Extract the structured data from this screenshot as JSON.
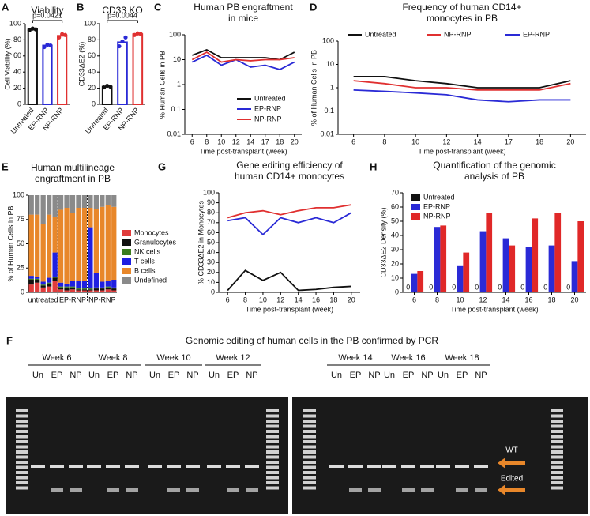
{
  "chart_data": [
    {
      "type": "bar",
      "label": "A",
      "title": [
        "Viability"
      ],
      "ylabel": "Cell Viability (%)",
      "annotation": "p=0.0421",
      "categories": [
        "Untreated",
        "EP-RNP",
        "NP-RNP"
      ],
      "values": [
        93,
        73,
        85
      ],
      "points": [
        [
          92,
          94,
          93
        ],
        [
          71,
          74,
          73
        ],
        [
          83,
          87,
          86
        ]
      ],
      "colors": [
        "#111111",
        "#2a2ad6",
        "#e03030"
      ],
      "ylim": [
        0,
        100
      ],
      "yticks": [
        0,
        20,
        40,
        60,
        80,
        100
      ]
    },
    {
      "type": "bar",
      "label": "B",
      "title": [
        "CD33 KO"
      ],
      "ylabel": "CD33ΔE2 (%)",
      "annotation": "p=0.0044",
      "categories": [
        "Untreated",
        "EP-RNP",
        "NP-RNP"
      ],
      "values": [
        22,
        77,
        87
      ],
      "points": [
        [
          21,
          23,
          22
        ],
        [
          72,
          78,
          83
        ],
        [
          86,
          88,
          87
        ]
      ],
      "colors": [
        "#111111",
        "#2a2ad6",
        "#e03030"
      ],
      "ylim": [
        0,
        100
      ],
      "yticks": [
        0,
        20,
        40,
        60,
        80,
        100
      ]
    },
    {
      "type": "line",
      "label": "C",
      "title": [
        "Human PB engraftment",
        "in mice"
      ],
      "ylabel": "% Human Cells in PB",
      "xlabel": "Time post-transplant (week)",
      "log": true,
      "legend": "lower right",
      "categories": [
        "6",
        "8",
        "10",
        "12",
        "14",
        "17",
        "18",
        "20"
      ],
      "series": [
        {
          "name": "Untreated",
          "color": "#111111",
          "values": [
            15,
            25,
            12,
            12,
            12,
            12,
            10,
            20
          ]
        },
        {
          "name": "EP-RNP",
          "color": "#2a2ad6",
          "values": [
            8,
            15,
            6,
            10,
            5,
            6,
            4,
            8
          ]
        },
        {
          "name": "NP-RNP",
          "color": "#e03030",
          "values": [
            10,
            20,
            8,
            10,
            9,
            10,
            10,
            12
          ]
        }
      ],
      "ylim": [
        0.01,
        100
      ],
      "yticks": [
        0.01,
        0.1,
        1,
        10,
        100
      ]
    },
    {
      "type": "line",
      "label": "D",
      "title": [
        "Frequency of human CD14+",
        "monocytes in PB"
      ],
      "ylabel": "% of Human Cells in PB",
      "xlabel": "Time post-transplant (week)",
      "log": true,
      "legend": "top",
      "categories": [
        "6",
        "8",
        "10",
        "12",
        "14",
        "17",
        "18",
        "20"
      ],
      "series": [
        {
          "name": "Untreated",
          "color": "#111111",
          "values": [
            3,
            3,
            2,
            1.5,
            1,
            1,
            1,
            2
          ]
        },
        {
          "name": "NP-RNP",
          "color": "#e03030",
          "values": [
            2,
            1.5,
            1,
            1,
            0.8,
            0.8,
            0.8,
            1.5
          ]
        },
        {
          "name": "EP-RNP",
          "color": "#2a2ad6",
          "values": [
            0.8,
            0.7,
            0.6,
            0.5,
            0.3,
            0.25,
            0.3,
            0.3
          ]
        }
      ],
      "ylim": [
        0.01,
        100
      ],
      "yticks": [
        0.01,
        0.1,
        1,
        10,
        100
      ]
    },
    {
      "type": "stacked_bar",
      "label": "E",
      "title": [
        "Human multilineage",
        "engraftment in PB"
      ],
      "ylabel": "% of Human Cells in PB",
      "legend": "right",
      "group_labels": [
        "untreated",
        "EP-RNP",
        "NP-RNP"
      ],
      "categories": [
        null,
        null,
        null,
        null,
        null,
        null,
        null,
        null,
        null,
        null,
        null,
        null,
        null,
        null,
        null
      ],
      "series": [
        {
          "name": "Monocytes",
          "color": "#e03c3c",
          "values": [
            8,
            10,
            5,
            6,
            12,
            3,
            2,
            3,
            2,
            2,
            2,
            2,
            2,
            3,
            2
          ]
        },
        {
          "name": "Granulocytes",
          "color": "#111111",
          "values": [
            5,
            3,
            2,
            3,
            3,
            2,
            3,
            2,
            1,
            1,
            1,
            2,
            2,
            2,
            2
          ]
        },
        {
          "name": "NK cells",
          "color": "#3a7d1e",
          "values": [
            1,
            1,
            1,
            1,
            1,
            1,
            1,
            1,
            1,
            1,
            1,
            1,
            1,
            1,
            1
          ]
        },
        {
          "name": "T cells",
          "color": "#1f1fe0",
          "values": [
            3,
            2,
            3,
            5,
            25,
            4,
            3,
            6,
            8,
            8,
            63,
            15,
            6,
            6,
            8
          ]
        },
        {
          "name": "B cells",
          "color": "#e8872a",
          "values": [
            63,
            64,
            59,
            65,
            37,
            75,
            78,
            70,
            75,
            75,
            20,
            66,
            77,
            78,
            75
          ]
        },
        {
          "name": "Undefined",
          "color": "#8a8a8a",
          "values": [
            20,
            20,
            30,
            20,
            22,
            15,
            13,
            18,
            13,
            13,
            13,
            14,
            12,
            10,
            12
          ]
        }
      ],
      "ylim": [
        0,
        100
      ],
      "yticks": [
        0,
        25,
        50,
        75,
        100
      ]
    },
    {
      "type": "line",
      "label": "G",
      "title": [
        "Gene editing efficiency of",
        "human CD14+ monocytes"
      ],
      "ylabel": "% CD33ΔE2 in Monocytes",
      "xlabel": "Time post-transplant (week)",
      "categories": [
        "6",
        "8",
        "10",
        "12",
        "14",
        "16",
        "18",
        "20"
      ],
      "series": [
        {
          "name": "NP-RNP",
          "color": "#e03030",
          "values": [
            75,
            80,
            82,
            78,
            82,
            85,
            85,
            88
          ]
        },
        {
          "name": "EP-RNP",
          "color": "#2a2ad6",
          "values": [
            72,
            75,
            58,
            75,
            70,
            75,
            70,
            80
          ]
        },
        {
          "name": "Untreated",
          "color": "#111111",
          "values": [
            2,
            22,
            12,
            20,
            2,
            3,
            5,
            6
          ]
        }
      ],
      "ylim": [
        0,
        100
      ],
      "yticks": [
        0,
        10,
        20,
        30,
        40,
        50,
        60,
        70,
        80,
        90,
        100
      ]
    },
    {
      "type": "grouped_bar",
      "label": "H",
      "title": [
        "Quantification of the genomic",
        "analysis of PB"
      ],
      "ylabel": "CD33ΔE2 Density (%)",
      "xlabel": "Time post-transplant (week)",
      "legend": "upper left",
      "categories": [
        "6",
        "8",
        "10",
        "12",
        "14",
        "16",
        "18",
        "20"
      ],
      "series": [
        {
          "name": "Untreated",
          "color": "#111111",
          "show_values": true,
          "values": [
            0,
            0,
            0,
            0,
            0,
            0,
            0,
            0
          ]
        },
        {
          "name": "EP-RNP",
          "color": "#2a2ad6",
          "values": [
            13,
            46,
            19,
            43,
            38,
            32,
            33,
            22
          ]
        },
        {
          "name": "NP-RNP",
          "color": "#e02828",
          "values": [
            15,
            47,
            28,
            56,
            33,
            52,
            56,
            50
          ]
        }
      ],
      "ylim": [
        0,
        70
      ],
      "yticks": [
        0,
        10,
        20,
        30,
        40,
        50,
        60,
        70
      ]
    }
  ],
  "gel": {
    "label": "F",
    "title": "Genomic editing of human cells in the PB confirmed by PCR",
    "weeks": [
      "Week 6",
      "Week 8",
      "Week 10",
      "Week 12",
      "Week 14",
      "Week 16",
      "Week 18"
    ],
    "lanes": [
      "Un",
      "EP",
      "NP"
    ],
    "wt": "WT",
    "edited": "Edited"
  }
}
